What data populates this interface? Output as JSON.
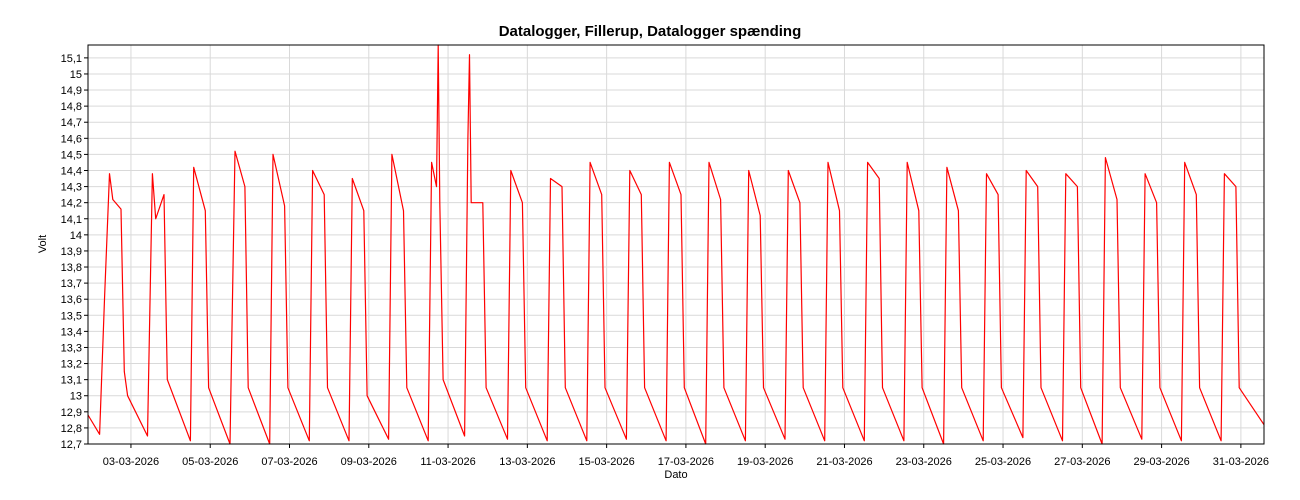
{
  "chart_data": {
    "type": "line",
    "title": "Datalogger, Fillerup, Datalogger spænding",
    "xlabel": "Dato",
    "ylabel": "Volt",
    "ylim": [
      12.7,
      15.18
    ],
    "xlim": [
      "2026-03-01T22:00",
      "2026-03-31T14:00"
    ],
    "y_ticks": [
      "12,7",
      "12,8",
      "12,9",
      "13",
      "13,1",
      "13,2",
      "13,3",
      "13,4",
      "13,5",
      "13,6",
      "13,7",
      "13,8",
      "13,9",
      "14",
      "14,1",
      "14,2",
      "14,3",
      "14,4",
      "14,5",
      "14,6",
      "14,7",
      "14,8",
      "14,9",
      "15",
      "15,1"
    ],
    "x_ticks": [
      "03-03-2026",
      "05-03-2026",
      "07-03-2026",
      "09-03-2026",
      "11-03-2026",
      "13-03-2026",
      "15-03-2026",
      "17-03-2026",
      "19-03-2026",
      "21-03-2026",
      "23-03-2026",
      "25-03-2026",
      "27-03-2026",
      "29-03-2026",
      "31-03-2026"
    ],
    "grid": true,
    "legend": "none",
    "series": [
      {
        "color": "#ff0000",
        "points": [
          [
            "2026-03-01T22:00",
            12.88
          ],
          [
            "2026-03-02T05:00",
            12.76
          ],
          [
            "2026-03-02T08:00",
            13.6
          ],
          [
            "2026-03-02T11:00",
            14.38
          ],
          [
            "2026-03-02T13:00",
            14.22
          ],
          [
            "2026-03-02T18:00",
            14.16
          ],
          [
            "2026-03-02T20:00",
            13.15
          ],
          [
            "2026-03-02T22:00",
            13.0
          ],
          [
            "2026-03-03T10:00",
            12.75
          ],
          [
            "2026-03-03T13:00",
            14.38
          ],
          [
            "2026-03-03T15:00",
            14.1
          ],
          [
            "2026-03-03T20:00",
            14.25
          ],
          [
            "2026-03-03T22:00",
            13.1
          ],
          [
            "2026-03-04T12:00",
            12.72
          ],
          [
            "2026-03-04T14:00",
            14.42
          ],
          [
            "2026-03-04T21:00",
            14.15
          ],
          [
            "2026-03-04T23:00",
            13.05
          ],
          [
            "2026-03-05T12:00",
            12.7
          ],
          [
            "2026-03-05T15:00",
            14.52
          ],
          [
            "2026-03-05T21:00",
            14.3
          ],
          [
            "2026-03-05T23:00",
            13.05
          ],
          [
            "2026-03-06T12:00",
            12.7
          ],
          [
            "2026-03-06T14:00",
            14.5
          ],
          [
            "2026-03-06T21:00",
            14.18
          ],
          [
            "2026-03-06T23:00",
            13.05
          ],
          [
            "2026-03-07T12:00",
            12.72
          ],
          [
            "2026-03-07T14:00",
            14.4
          ],
          [
            "2026-03-07T21:00",
            14.25
          ],
          [
            "2026-03-07T23:00",
            13.05
          ],
          [
            "2026-03-08T12:00",
            12.72
          ],
          [
            "2026-03-08T14:00",
            14.35
          ],
          [
            "2026-03-08T21:00",
            14.15
          ],
          [
            "2026-03-08T23:00",
            13.0
          ],
          [
            "2026-03-09T12:00",
            12.73
          ],
          [
            "2026-03-09T14:00",
            14.5
          ],
          [
            "2026-03-09T21:00",
            14.15
          ],
          [
            "2026-03-09T23:00",
            13.05
          ],
          [
            "2026-03-10T12:00",
            12.72
          ],
          [
            "2026-03-10T14:00",
            14.45
          ],
          [
            "2026-03-10T17:00",
            14.3
          ],
          [
            "2026-03-10T18:00",
            15.18
          ],
          [
            "2026-03-10T19:00",
            14.2
          ],
          [
            "2026-03-10T21:00",
            13.1
          ],
          [
            "2026-03-11T10:00",
            12.75
          ],
          [
            "2026-03-11T12:00",
            14.6
          ],
          [
            "2026-03-11T13:00",
            15.12
          ],
          [
            "2026-03-11T14:00",
            14.2
          ],
          [
            "2026-03-11T21:00",
            14.2
          ],
          [
            "2026-03-11T23:00",
            13.05
          ],
          [
            "2026-03-12T12:00",
            12.73
          ],
          [
            "2026-03-12T14:00",
            14.4
          ],
          [
            "2026-03-12T21:00",
            14.2
          ],
          [
            "2026-03-12T23:00",
            13.05
          ],
          [
            "2026-03-13T12:00",
            12.72
          ],
          [
            "2026-03-13T14:00",
            14.35
          ],
          [
            "2026-03-13T21:00",
            14.3
          ],
          [
            "2026-03-13T23:00",
            13.05
          ],
          [
            "2026-03-14T12:00",
            12.72
          ],
          [
            "2026-03-14T14:00",
            14.45
          ],
          [
            "2026-03-14T21:00",
            14.25
          ],
          [
            "2026-03-14T23:00",
            13.05
          ],
          [
            "2026-03-15T12:00",
            12.73
          ],
          [
            "2026-03-15T14:00",
            14.4
          ],
          [
            "2026-03-15T21:00",
            14.25
          ],
          [
            "2026-03-15T23:00",
            13.05
          ],
          [
            "2026-03-16T12:00",
            12.72
          ],
          [
            "2026-03-16T14:00",
            14.45
          ],
          [
            "2026-03-16T21:00",
            14.25
          ],
          [
            "2026-03-16T23:00",
            13.05
          ],
          [
            "2026-03-17T12:00",
            12.7
          ],
          [
            "2026-03-17T14:00",
            14.45
          ],
          [
            "2026-03-17T21:00",
            14.22
          ],
          [
            "2026-03-17T23:00",
            13.05
          ],
          [
            "2026-03-18T12:00",
            12.72
          ],
          [
            "2026-03-18T14:00",
            14.4
          ],
          [
            "2026-03-18T21:00",
            14.12
          ],
          [
            "2026-03-18T23:00",
            13.05
          ],
          [
            "2026-03-19T12:00",
            12.73
          ],
          [
            "2026-03-19T14:00",
            14.4
          ],
          [
            "2026-03-19T21:00",
            14.2
          ],
          [
            "2026-03-19T23:00",
            13.05
          ],
          [
            "2026-03-20T12:00",
            12.72
          ],
          [
            "2026-03-20T14:00",
            14.45
          ],
          [
            "2026-03-20T21:00",
            14.15
          ],
          [
            "2026-03-20T23:00",
            13.05
          ],
          [
            "2026-03-21T12:00",
            12.72
          ],
          [
            "2026-03-21T14:00",
            14.45
          ],
          [
            "2026-03-21T21:00",
            14.35
          ],
          [
            "2026-03-21T23:00",
            13.05
          ],
          [
            "2026-03-22T12:00",
            12.72
          ],
          [
            "2026-03-22T14:00",
            14.45
          ],
          [
            "2026-03-22T21:00",
            14.15
          ],
          [
            "2026-03-22T23:00",
            13.05
          ],
          [
            "2026-03-23T12:00",
            12.7
          ],
          [
            "2026-03-23T14:00",
            14.42
          ],
          [
            "2026-03-23T21:00",
            14.15
          ],
          [
            "2026-03-23T23:00",
            13.05
          ],
          [
            "2026-03-24T12:00",
            12.72
          ],
          [
            "2026-03-24T14:00",
            14.38
          ],
          [
            "2026-03-24T21:00",
            14.25
          ],
          [
            "2026-03-24T23:00",
            13.05
          ],
          [
            "2026-03-25T12:00",
            12.74
          ],
          [
            "2026-03-25T14:00",
            14.4
          ],
          [
            "2026-03-25T21:00",
            14.3
          ],
          [
            "2026-03-25T23:00",
            13.05
          ],
          [
            "2026-03-26T12:00",
            12.72
          ],
          [
            "2026-03-26T14:00",
            14.38
          ],
          [
            "2026-03-26T21:00",
            14.3
          ],
          [
            "2026-03-26T23:00",
            13.05
          ],
          [
            "2026-03-27T12:00",
            12.7
          ],
          [
            "2026-03-27T14:00",
            14.48
          ],
          [
            "2026-03-27T21:00",
            14.22
          ],
          [
            "2026-03-27T23:00",
            13.05
          ],
          [
            "2026-03-28T12:00",
            12.73
          ],
          [
            "2026-03-28T14:00",
            14.38
          ],
          [
            "2026-03-28T21:00",
            14.2
          ],
          [
            "2026-03-28T23:00",
            13.05
          ],
          [
            "2026-03-29T12:00",
            12.72
          ],
          [
            "2026-03-29T14:00",
            14.45
          ],
          [
            "2026-03-29T21:00",
            14.25
          ],
          [
            "2026-03-29T23:00",
            13.05
          ],
          [
            "2026-03-30T12:00",
            12.72
          ],
          [
            "2026-03-30T14:00",
            14.38
          ],
          [
            "2026-03-30T21:00",
            14.3
          ],
          [
            "2026-03-30T23:00",
            13.05
          ],
          [
            "2026-03-31T14:00",
            12.82
          ]
        ]
      }
    ]
  }
}
